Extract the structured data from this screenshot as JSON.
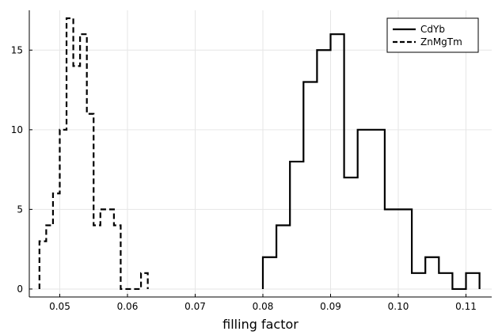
{
  "chart_data": {
    "type": "histogram-step",
    "xlabel": "filling factor",
    "ylabel": "",
    "title": "",
    "xlim": [
      0.0455,
      0.1138
    ],
    "ylim": [
      -0.5,
      17.5
    ],
    "grid": true,
    "legend_position": "top-right",
    "xticks": [
      0.05,
      0.06,
      0.07,
      0.08,
      0.09,
      0.1,
      0.11
    ],
    "xtick_labels": [
      "0.05",
      "0.06",
      "0.07",
      "0.08",
      "0.09",
      "0.10",
      "0.11"
    ],
    "yticks": [
      0,
      5,
      10,
      15
    ],
    "ytick_labels": [
      "0",
      "5",
      "10",
      "15"
    ],
    "series": [
      {
        "name": "CdYb",
        "style": "solid",
        "color": "#000000",
        "edges": [
          0.08,
          0.082,
          0.084,
          0.086,
          0.088,
          0.09,
          0.092,
          0.094,
          0.096,
          0.098,
          0.1,
          0.102,
          0.104,
          0.106,
          0.108,
          0.11,
          0.112
        ],
        "counts": [
          2,
          4,
          8,
          13,
          15,
          16,
          7,
          10,
          10,
          5,
          5,
          1,
          2,
          1,
          0,
          1
        ]
      },
      {
        "name": "ZnMgTm",
        "style": "dashed",
        "color": "#000000",
        "edges": [
          0.047,
          0.048,
          0.049,
          0.05,
          0.051,
          0.052,
          0.053,
          0.054,
          0.055,
          0.056,
          0.057,
          0.058,
          0.059,
          0.06,
          0.061,
          0.062,
          0.063
        ],
        "counts": [
          3,
          4,
          6,
          10,
          17,
          14,
          16,
          11,
          4,
          5,
          5,
          4,
          0,
          0,
          0,
          1
        ]
      }
    ]
  }
}
